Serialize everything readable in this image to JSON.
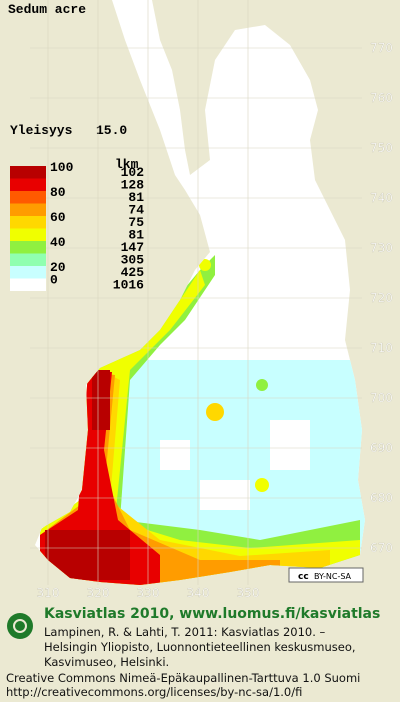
{
  "title": "Sedum acre",
  "frequency": {
    "label": "Yleisyys",
    "value": "15.0"
  },
  "legend": {
    "count_header": "lkm",
    "scale_labels": [
      100,
      80,
      60,
      40,
      20,
      0
    ],
    "classes": [
      {
        "color": "#b80000",
        "count": 102
      },
      {
        "color": "#e80000",
        "count": 128
      },
      {
        "color": "#ff5a00",
        "count": 81
      },
      {
        "color": "#ff9c00",
        "count": 74
      },
      {
        "color": "#ffd800",
        "count": 75
      },
      {
        "color": "#f0ff00",
        "count": 81
      },
      {
        "color": "#90f040",
        "count": 147
      },
      {
        "color": "#90ffb0",
        "count": 305
      },
      {
        "color": "#c8ffff",
        "count": 425
      },
      {
        "color": "#ffffff",
        "count": 1016
      }
    ]
  },
  "grid": {
    "north": [
      770,
      760,
      750,
      740,
      730,
      720,
      710,
      700,
      690,
      680,
      670
    ],
    "east": [
      310,
      320,
      330,
      340,
      350
    ]
  },
  "license_badge": {
    "cc": "cc",
    "text": "BY-NC-SA"
  },
  "footer": {
    "heading": "Kasviatlas 2010, www.luomus.fi/kasviatlas",
    "citation": [
      "Lampinen, R. & Lahti, T. 2011: Kasviatlas 2010. –",
      "Helsingin Yliopisto, Luonnontieteellinen keskusmuseo,",
      "Kasvimuseo, Helsinki."
    ],
    "license": [
      "Creative Commons Nimeä-Epäkaupallinen-Tarttuva 1.0 Suomi",
      "http://creativecommons.org/licenses/by-nc-sa/1.0/fi"
    ]
  }
}
